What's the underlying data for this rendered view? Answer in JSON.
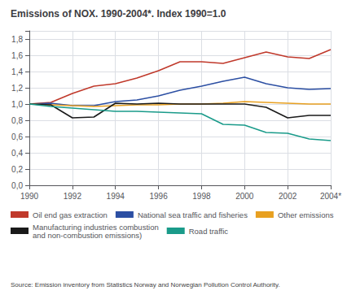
{
  "chart_data": {
    "type": "line",
    "title": "Emissions of NOX. 1990-2004*. Index 1990=1.0",
    "annotations": [
      "Source: Emission inventory from Statistics Norway and Norwegian Pollution Control Authority."
    ],
    "x": [
      1990,
      1991,
      1992,
      1993,
      1994,
      1995,
      1996,
      1997,
      1998,
      1999,
      2000,
      2001,
      2002,
      2003,
      2004
    ],
    "series": [
      {
        "name": "Oil end gas extraction",
        "color": "#c0392b",
        "values": [
          1.0,
          1.02,
          1.13,
          1.22,
          1.25,
          1.32,
          1.41,
          1.52,
          1.52,
          1.5,
          1.57,
          1.64,
          1.58,
          1.56,
          1.67
        ]
      },
      {
        "name": "National sea traffic and fisheries",
        "color": "#2c4fa3",
        "values": [
          1.0,
          1.01,
          0.98,
          0.98,
          1.03,
          1.05,
          1.1,
          1.17,
          1.22,
          1.28,
          1.33,
          1.25,
          1.2,
          1.18,
          1.19
        ]
      },
      {
        "name": "Other emissions",
        "color": "#e8a020",
        "values": [
          1.0,
          0.99,
          0.98,
          0.97,
          0.98,
          0.99,
          0.99,
          1.0,
          1.0,
          1.01,
          1.03,
          1.02,
          1.01,
          1.0,
          1.0
        ]
      },
      {
        "name": "Manufacturing industries combustion\nand non-combustion emissions)",
        "color": "#1a1a1a",
        "values": [
          1.0,
          0.99,
          0.83,
          0.84,
          1.01,
          1.0,
          1.01,
          1.0,
          1.0,
          1.0,
          1.0,
          0.96,
          0.83,
          0.86,
          0.86
        ]
      },
      {
        "name": "Road traffic",
        "color": "#1a9b8a",
        "values": [
          1.0,
          0.97,
          0.95,
          0.93,
          0.91,
          0.91,
          0.9,
          0.89,
          0.88,
          0.75,
          0.74,
          0.65,
          0.64,
          0.57,
          0.55
        ]
      }
    ],
    "xlim": [
      1990,
      2004
    ],
    "xticks": [
      1990,
      1992,
      1994,
      1996,
      1998,
      2000,
      2002,
      {
        "value": 2004,
        "label": "2004*"
      }
    ],
    "ylim": [
      0.0,
      1.9
    ],
    "yticks": [
      {
        "value": 0.0,
        "label": "0,0"
      },
      {
        "value": 0.2,
        "label": "0,2"
      },
      {
        "value": 0.4,
        "label": "0,4"
      },
      {
        "value": 0.6,
        "label": "0,6"
      },
      {
        "value": 0.8,
        "label": "0,8"
      },
      {
        "value": 1.0,
        "label": "1,0"
      },
      {
        "value": 1.2,
        "label": "1,2"
      },
      {
        "value": 1.4,
        "label": "1,4"
      },
      {
        "value": 1.6,
        "label": "1,6"
      },
      {
        "value": 1.8,
        "label": "1,8"
      }
    ],
    "grid": true,
    "legend": "bottom"
  }
}
